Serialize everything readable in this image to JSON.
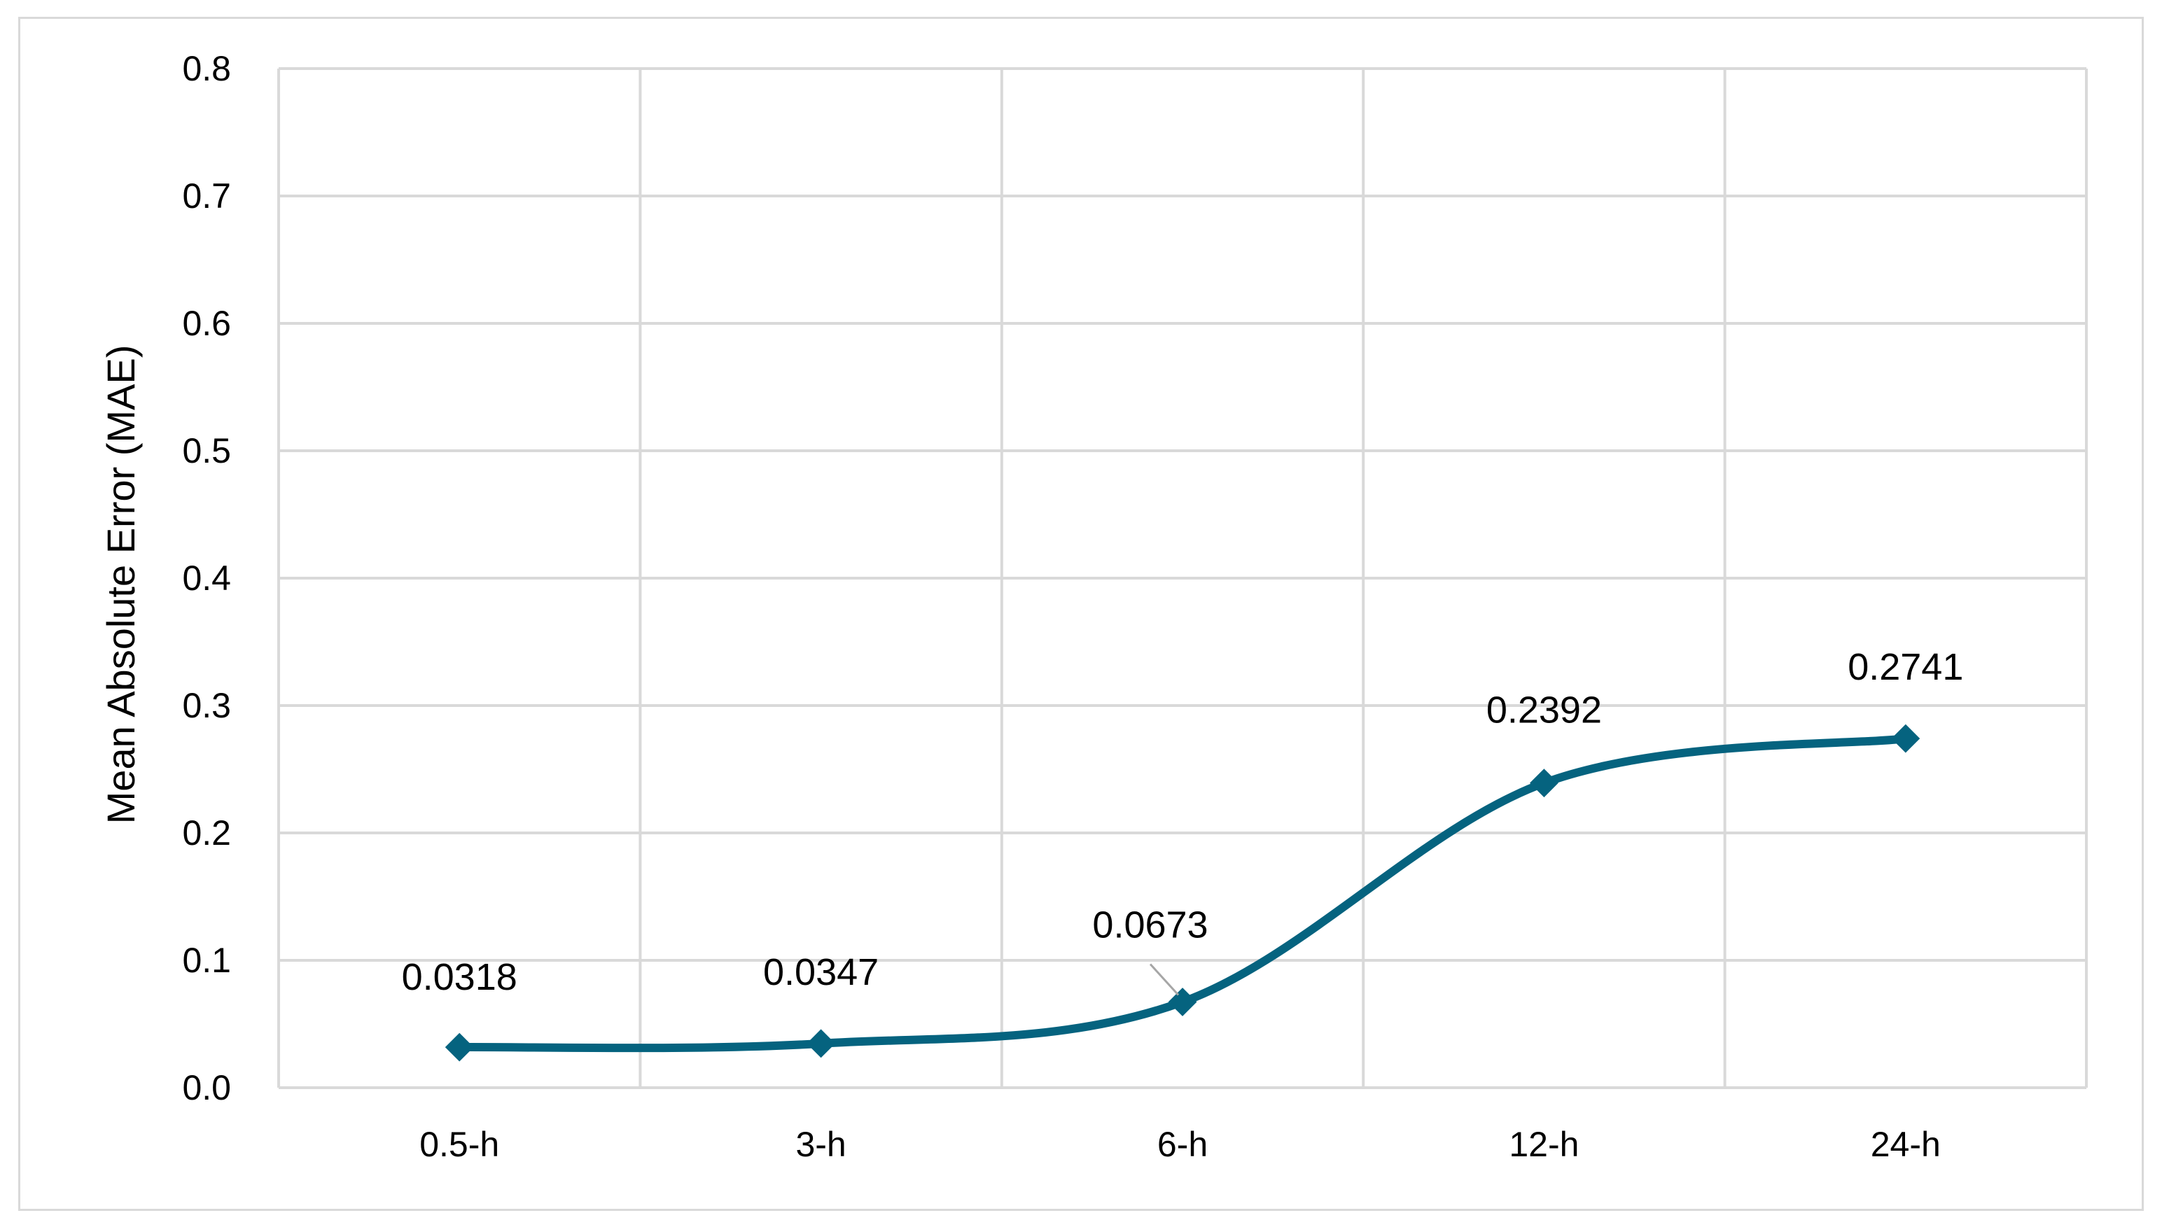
{
  "chart_data": {
    "type": "line",
    "title": "",
    "xlabel": "",
    "ylabel": "Mean Absolute Error (MAE)",
    "categories": [
      "0.5-h",
      "3-h",
      "6-h",
      "12-h",
      "24-h"
    ],
    "series": [
      {
        "values": [
          0.0318,
          0.0347,
          0.0673,
          0.2392,
          0.2741
        ],
        "labels": [
          "0.0318",
          "0.0347",
          "0.0673",
          "0.2392",
          "0.2741"
        ],
        "color": "#05637f",
        "marker": "diamond",
        "smooth": true
      }
    ],
    "ylim": [
      0,
      0.8
    ],
    "yticks": [
      "0.0",
      "0.1",
      "0.2",
      "0.3",
      "0.4",
      "0.5",
      "0.6",
      "0.7",
      "0.8"
    ],
    "grid": true,
    "gridColor": "#d9d9d9",
    "legend": "none"
  }
}
